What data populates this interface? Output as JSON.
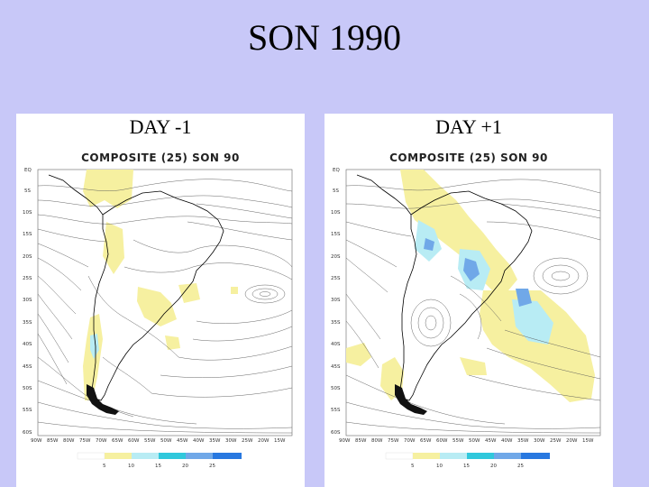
{
  "slide": {
    "title": "SON 1990"
  },
  "panels": [
    {
      "label": "DAY -1",
      "map_title": "COMPOSITE (25) SON 90",
      "lat_ticks": [
        "EQ",
        "5S",
        "10S",
        "15S",
        "20S",
        "25S",
        "30S",
        "35S",
        "40S",
        "45S",
        "50S",
        "55S",
        "60S"
      ],
      "lon_ticks": [
        "90W",
        "85W",
        "80W",
        "75W",
        "70W",
        "65W",
        "60W",
        "55W",
        "50W",
        "45W",
        "40W",
        "35W",
        "30W",
        "25W",
        "20W",
        "15W"
      ],
      "colorbar": [
        "5",
        "10",
        "15",
        "20",
        "25"
      ]
    },
    {
      "label": "DAY +1",
      "map_title": "COMPOSITE (25) SON 90",
      "lat_ticks": [
        "EQ",
        "5S",
        "10S",
        "15S",
        "20S",
        "25S",
        "30S",
        "35S",
        "40S",
        "45S",
        "50S",
        "55S",
        "60S"
      ],
      "lon_ticks": [
        "90W",
        "85W",
        "80W",
        "75W",
        "70W",
        "65W",
        "60W",
        "55W",
        "50W",
        "45W",
        "40W",
        "35W",
        "30W",
        "25W",
        "20W",
        "15W"
      ],
      "colorbar": [
        "5",
        "10",
        "15",
        "20",
        "25"
      ]
    }
  ],
  "colors": {
    "shade_5_10": "#f6f0a0",
    "shade_10_15": "#b8ecf4",
    "shade_15_20": "#30c8dc",
    "shade_20_25": "#70a8e8",
    "shade_25_plus": "#2878e0",
    "streamline": "#444444",
    "coast": "#000000"
  }
}
